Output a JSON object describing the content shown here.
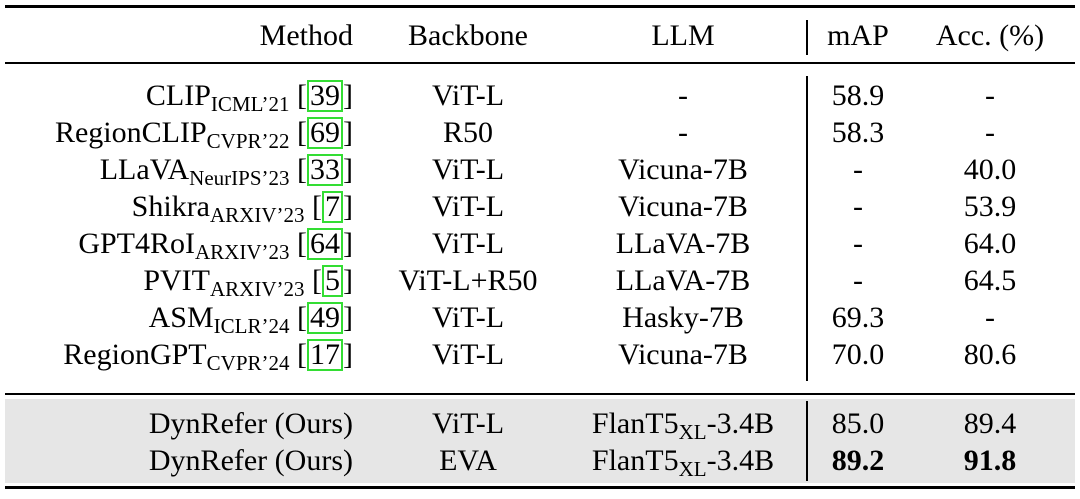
{
  "header": {
    "method": "Method",
    "backbone": "Backbone",
    "llm": "LLM",
    "map": "mAP",
    "acc": "Acc. (%)"
  },
  "rows": [
    {
      "name": "CLIP",
      "venue": "ICML’21",
      "ref": "39",
      "backbone": "ViT-L",
      "llm": "-",
      "map": "58.9",
      "acc": "-"
    },
    {
      "name": "RegionCLIP",
      "venue": "CVPR’22",
      "ref": "69",
      "backbone": "R50",
      "llm": "-",
      "map": "58.3",
      "acc": "-"
    },
    {
      "name": "LLaVA",
      "venue": "NeurIPS’23",
      "ref": "33",
      "backbone": "ViT-L",
      "llm": "Vicuna-7B",
      "map": "-",
      "acc": "40.0"
    },
    {
      "name": "Shikra",
      "venue": "ARXIV’23",
      "ref": "7",
      "backbone": "ViT-L",
      "llm": "Vicuna-7B",
      "map": "-",
      "acc": "53.9"
    },
    {
      "name": "GPT4RoI",
      "venue": "ARXIV’23",
      "ref": "64",
      "backbone": "ViT-L",
      "llm": "LLaVA-7B",
      "map": "-",
      "acc": "64.0"
    },
    {
      "name": "PVIT",
      "venue": "ARXIV’23",
      "ref": "5",
      "backbone": "ViT-L+R50",
      "llm": "LLaVA-7B",
      "map": "-",
      "acc": "64.5"
    },
    {
      "name": "ASM",
      "venue": "ICLR’24",
      "ref": "49",
      "backbone": "ViT-L",
      "llm": "Hasky-7B",
      "map": "69.3",
      "acc": "-"
    },
    {
      "name": "RegionGPT",
      "venue": "CVPR’24",
      "ref": "17",
      "backbone": "ViT-L",
      "llm": "Vicuna-7B",
      "map": "70.0",
      "acc": "80.6"
    }
  ],
  "ours": [
    {
      "name": "DynRefer (Ours)",
      "backbone": "ViT-L",
      "llm_base": "FlanT5",
      "llm_sub": "XL",
      "llm_suffix": "-3.4B",
      "map": "85.0",
      "acc": "89.4"
    },
    {
      "name": "DynRefer (Ours)",
      "backbone": "EVA",
      "llm_base": "FlanT5",
      "llm_sub": "XL",
      "llm_suffix": "-3.4B",
      "map": "89.2",
      "acc": "91.8"
    }
  ]
}
